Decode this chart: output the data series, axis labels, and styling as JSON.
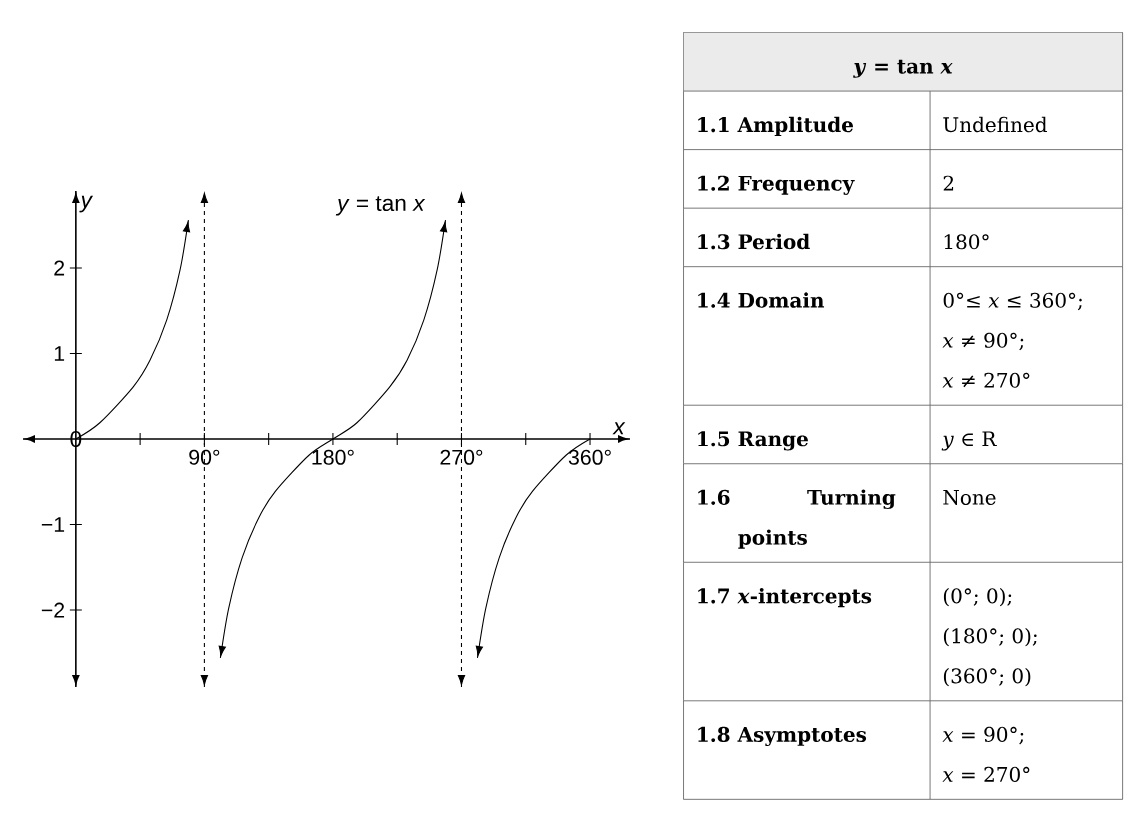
{
  "chart_data": [
    {
      "type": "line",
      "xlabel": "*x*",
      "ylabel": "*y*",
      "series": [
        {
          "color": "#000000",
          "x": [
            0,
            16.8,
            40.2,
            51.9,
            63.6,
            73,
            78.8
          ],
          "values": [
            0,
            0.19,
            0.61,
            0.92,
            1.39,
            1.98,
            2.56
          ]
        },
        {
          "color": "#000000",
          "x": [
            101.2,
            107,
            116.4,
            128.1,
            139.8,
            163.2,
            180,
            196.8,
            219.8,
            231.9,
            243.6,
            253,
            258.8
          ],
          "values": [
            -2.56,
            -1.98,
            -1.39,
            -0.92,
            -0.61,
            -0.19,
            0,
            0.19,
            0.61,
            0.92,
            1.39,
            1.98,
            2.56
          ]
        },
        {
          "color": "#000000",
          "x": [
            281.2,
            287,
            296.4,
            308.1,
            319.8,
            343.2,
            360
          ],
          "values": [
            -2.56,
            -1.98,
            -1.39,
            -0.92,
            -0.61,
            -0.19,
            0
          ]
        }
      ],
      "xlim": [
        -37,
        388
      ],
      "ylim": [
        -2.9,
        2.9
      ],
      "xticks": [
        {
          "value": 45,
          "label": null
        },
        {
          "value": 90,
          "label": "90°"
        },
        {
          "value": 135,
          "label": null
        },
        {
          "value": 180,
          "label": "180°"
        },
        {
          "value": 225,
          "label": null
        },
        {
          "value": 270,
          "label": "270°"
        },
        {
          "value": 315,
          "label": null
        },
        {
          "value": 360,
          "label": "360°"
        }
      ],
      "yticks": [
        {
          "value": -2,
          "label": "−2"
        },
        {
          "value": -1,
          "label": "−1"
        },
        1,
        2
      ],
      "ref_lines": [
        {
          "axis": "x",
          "value": 90,
          "line_style": "dashed"
        },
        {
          "axis": "x",
          "value": 270,
          "line_style": "dashed"
        }
      ],
      "annotations": [
        {
          "text": "0",
          "x": 0,
          "y": 0
        },
        "*y* = tan *x*"
      ]
    },
    {
      "type": "other",
      "title": "*y* = tan *x*",
      "y_categories": [
        "1.1 Amplitude",
        "1.2 Frequency",
        "1.3 Period",
        "1.4 Domain",
        "1.5 Range",
        "1.6 Turning points",
        "1.7 *x*-intercepts",
        "1.8 Asymptotes"
      ],
      "cell_labels": [
        [
          "Undefined"
        ],
        [
          "2"
        ],
        [
          "180°"
        ],
        [
          "0°≤ *x* ≤ 360°;",
          "*x* ≠ 90°;",
          "*x* ≠ 270°"
        ],
        [
          "*y* ∈ R"
        ],
        [
          "None"
        ],
        [
          "(0°; 0);",
          "(180°; 0);",
          "(360°; 0)"
        ],
        [
          "*x* = 90°;",
          "*x* = 270°"
        ]
      ]
    }
  ]
}
